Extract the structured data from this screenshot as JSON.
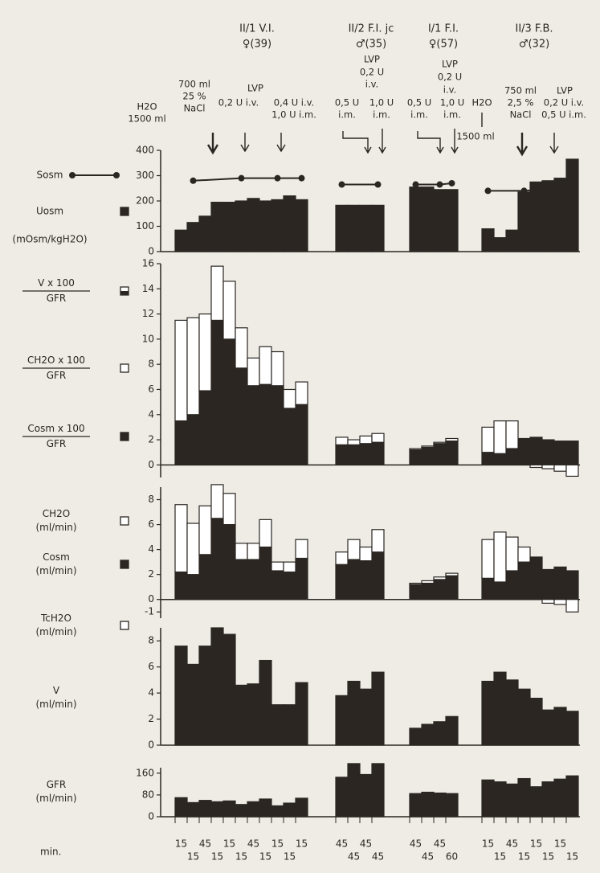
{
  "groups": [
    {
      "title": "II/1 V.I.",
      "subtitle": "♀(39)",
      "categories": [
        "15",
        "15",
        "45",
        "15",
        "15",
        "15",
        "45",
        "15",
        "15",
        "15",
        "15"
      ]
    },
    {
      "title": "II/2 F.I. jc",
      "subtitle": "♂(35)",
      "categories": [
        "45",
        "45",
        "45",
        "45"
      ]
    },
    {
      "title": "I/1 F.I.",
      "subtitle": "♀(57)",
      "categories": [
        "45",
        "45",
        "45",
        "60"
      ]
    },
    {
      "title": "II/3 F.B.",
      "subtitle": "♂(32)",
      "categories": [
        "15",
        "15",
        "45",
        "15",
        "15",
        "15",
        "15",
        "15"
      ]
    }
  ],
  "annotations": [
    "H2O",
    "1500 ml",
    "700 ml",
    "25 %",
    "NaCl",
    "LVP",
    "0,2 U i.v.",
    "0,4 U i.v.",
    "1,0 U i.m.",
    "LVP",
    "0,2 U",
    "i.v.",
    "0,5 U",
    "i.m.",
    "1,0 U",
    "i.m.",
    "LVP",
    "0,2 U",
    "i.v.",
    "0,5 U",
    "i.m.",
    "1,0 U",
    "i.m.",
    "H2O",
    "1500 ml",
    "750 ml",
    "2,5 %",
    "NaCl",
    "LVP",
    "0,2 U i.v.",
    "0,5 U i.m."
  ],
  "xlabel": "min.",
  "chart_data": [
    {
      "type": "bar",
      "ylim": [
        0,
        400
      ],
      "yticks": [
        0,
        100,
        200,
        300,
        400
      ],
      "ylabels": [
        {
          "lines": [
            "Sosm"
          ],
          "symbol": "line"
        },
        {
          "lines": [
            "Uosm"
          ],
          "symbol": "filled"
        },
        {
          "lines": [
            "(mOsm/kgH2O)"
          ]
        }
      ],
      "series": [
        {
          "style": "filled",
          "values": [
            85,
            115,
            140,
            195,
            195,
            200,
            210,
            200,
            205,
            220,
            205,
            183,
            183,
            183,
            183,
            255,
            255,
            245,
            245,
            90,
            55,
            85,
            235,
            275,
            280,
            290,
            365
          ]
        },
        {
          "style": "line",
          "values": [
            null,
            280,
            null,
            null,
            null,
            290,
            null,
            null,
            290,
            null,
            290,
            265,
            null,
            null,
            265,
            265,
            null,
            265,
            270,
            240,
            null,
            null,
            240,
            null,
            null,
            250,
            null
          ]
        }
      ]
    },
    {
      "type": "stacked_bar",
      "ylim": [
        -1,
        16
      ],
      "yticks": [
        0,
        2,
        4,
        6,
        8,
        10,
        12,
        14,
        16
      ],
      "ylabels": [
        {
          "lines": [
            "V x 100",
            "GFR"
          ],
          "symbol": "half"
        },
        {
          "lines": [
            "CH2O x 100",
            "GFR"
          ],
          "symbol": "open"
        },
        {
          "lines": [
            "Cosm x 100",
            "GFR"
          ],
          "symbol": "filled"
        }
      ],
      "series": [
        {
          "style": "filled",
          "values": [
            3.5,
            4.0,
            5.9,
            11.5,
            10.0,
            7.7,
            6.3,
            6.4,
            6.3,
            4.5,
            4.8,
            1.6,
            1.6,
            1.7,
            1.8,
            1.2,
            1.4,
            1.7,
            1.9,
            1.0,
            0.9,
            1.3,
            2.1,
            2.2,
            2.0,
            1.9,
            1.9
          ]
        },
        {
          "style": "open",
          "values": [
            8.0,
            7.7,
            6.1,
            4.3,
            4.6,
            3.2,
            2.2,
            3.0,
            2.7,
            1.5,
            1.8,
            0.6,
            0.4,
            0.6,
            0.7,
            0.1,
            0.1,
            0.1,
            0.2,
            2.0,
            2.6,
            2.2,
            0,
            -0.2,
            -0.3,
            -0.5,
            -0.9
          ]
        }
      ]
    },
    {
      "type": "stacked_bar",
      "ylim": [
        -1.5,
        9
      ],
      "yticks": [
        -1,
        0,
        2,
        4,
        6,
        8
      ],
      "ylabels": [
        {
          "lines": [
            "CH2O",
            "(ml/min)"
          ],
          "symbol": "open"
        },
        {
          "lines": [
            "Cosm",
            "(ml/min)"
          ],
          "symbol": "filled"
        },
        {
          "lines": [
            "TcH2O",
            "(ml/min)"
          ],
          "symbol": "open"
        }
      ],
      "series": [
        {
          "style": "filled",
          "values": [
            2.2,
            2.0,
            3.6,
            6.5,
            6.0,
            3.2,
            3.2,
            4.2,
            2.3,
            2.2,
            3.3,
            2.8,
            3.2,
            3.1,
            3.8,
            1.2,
            1.3,
            1.6,
            1.9,
            1.7,
            1.4,
            2.3,
            3.0,
            3.4,
            2.4,
            2.6,
            2.3
          ]
        },
        {
          "style": "open",
          "values": [
            5.4,
            4.1,
            3.9,
            2.7,
            2.5,
            1.3,
            1.3,
            2.2,
            0.7,
            0.8,
            1.5,
            1.0,
            1.6,
            1.1,
            1.8,
            0.1,
            0.2,
            0.2,
            0.2,
            3.1,
            4.0,
            2.7,
            1.2,
            0,
            -0.3,
            -0.4,
            -1.0
          ]
        }
      ]
    },
    {
      "type": "bar",
      "ylim": [
        0,
        9
      ],
      "yticks": [
        0,
        2,
        4,
        6,
        8
      ],
      "ylabels": [
        {
          "lines": [
            "V",
            "(ml/min)"
          ]
        }
      ],
      "series": [
        {
          "style": "filled",
          "values": [
            7.6,
            6.2,
            7.6,
            9.0,
            8.5,
            4.6,
            4.7,
            6.5,
            3.1,
            3.1,
            4.8,
            3.8,
            4.9,
            4.3,
            5.6,
            1.3,
            1.6,
            1.8,
            2.2,
            4.9,
            5.6,
            5.0,
            4.3,
            3.6,
            2.7,
            2.9,
            2.6
          ]
        }
      ]
    },
    {
      "type": "bar",
      "ylim": [
        0,
        180
      ],
      "yticks": [
        0,
        80,
        160
      ],
      "ylabels": [
        {
          "lines": [
            "GFR",
            "(ml/min)"
          ]
        }
      ],
      "series": [
        {
          "style": "filled",
          "values": [
            70,
            52,
            60,
            55,
            58,
            45,
            55,
            65,
            40,
            50,
            68,
            145,
            195,
            155,
            195,
            85,
            90,
            87,
            85,
            135,
            128,
            120,
            140,
            110,
            128,
            138,
            150
          ]
        }
      ]
    }
  ]
}
